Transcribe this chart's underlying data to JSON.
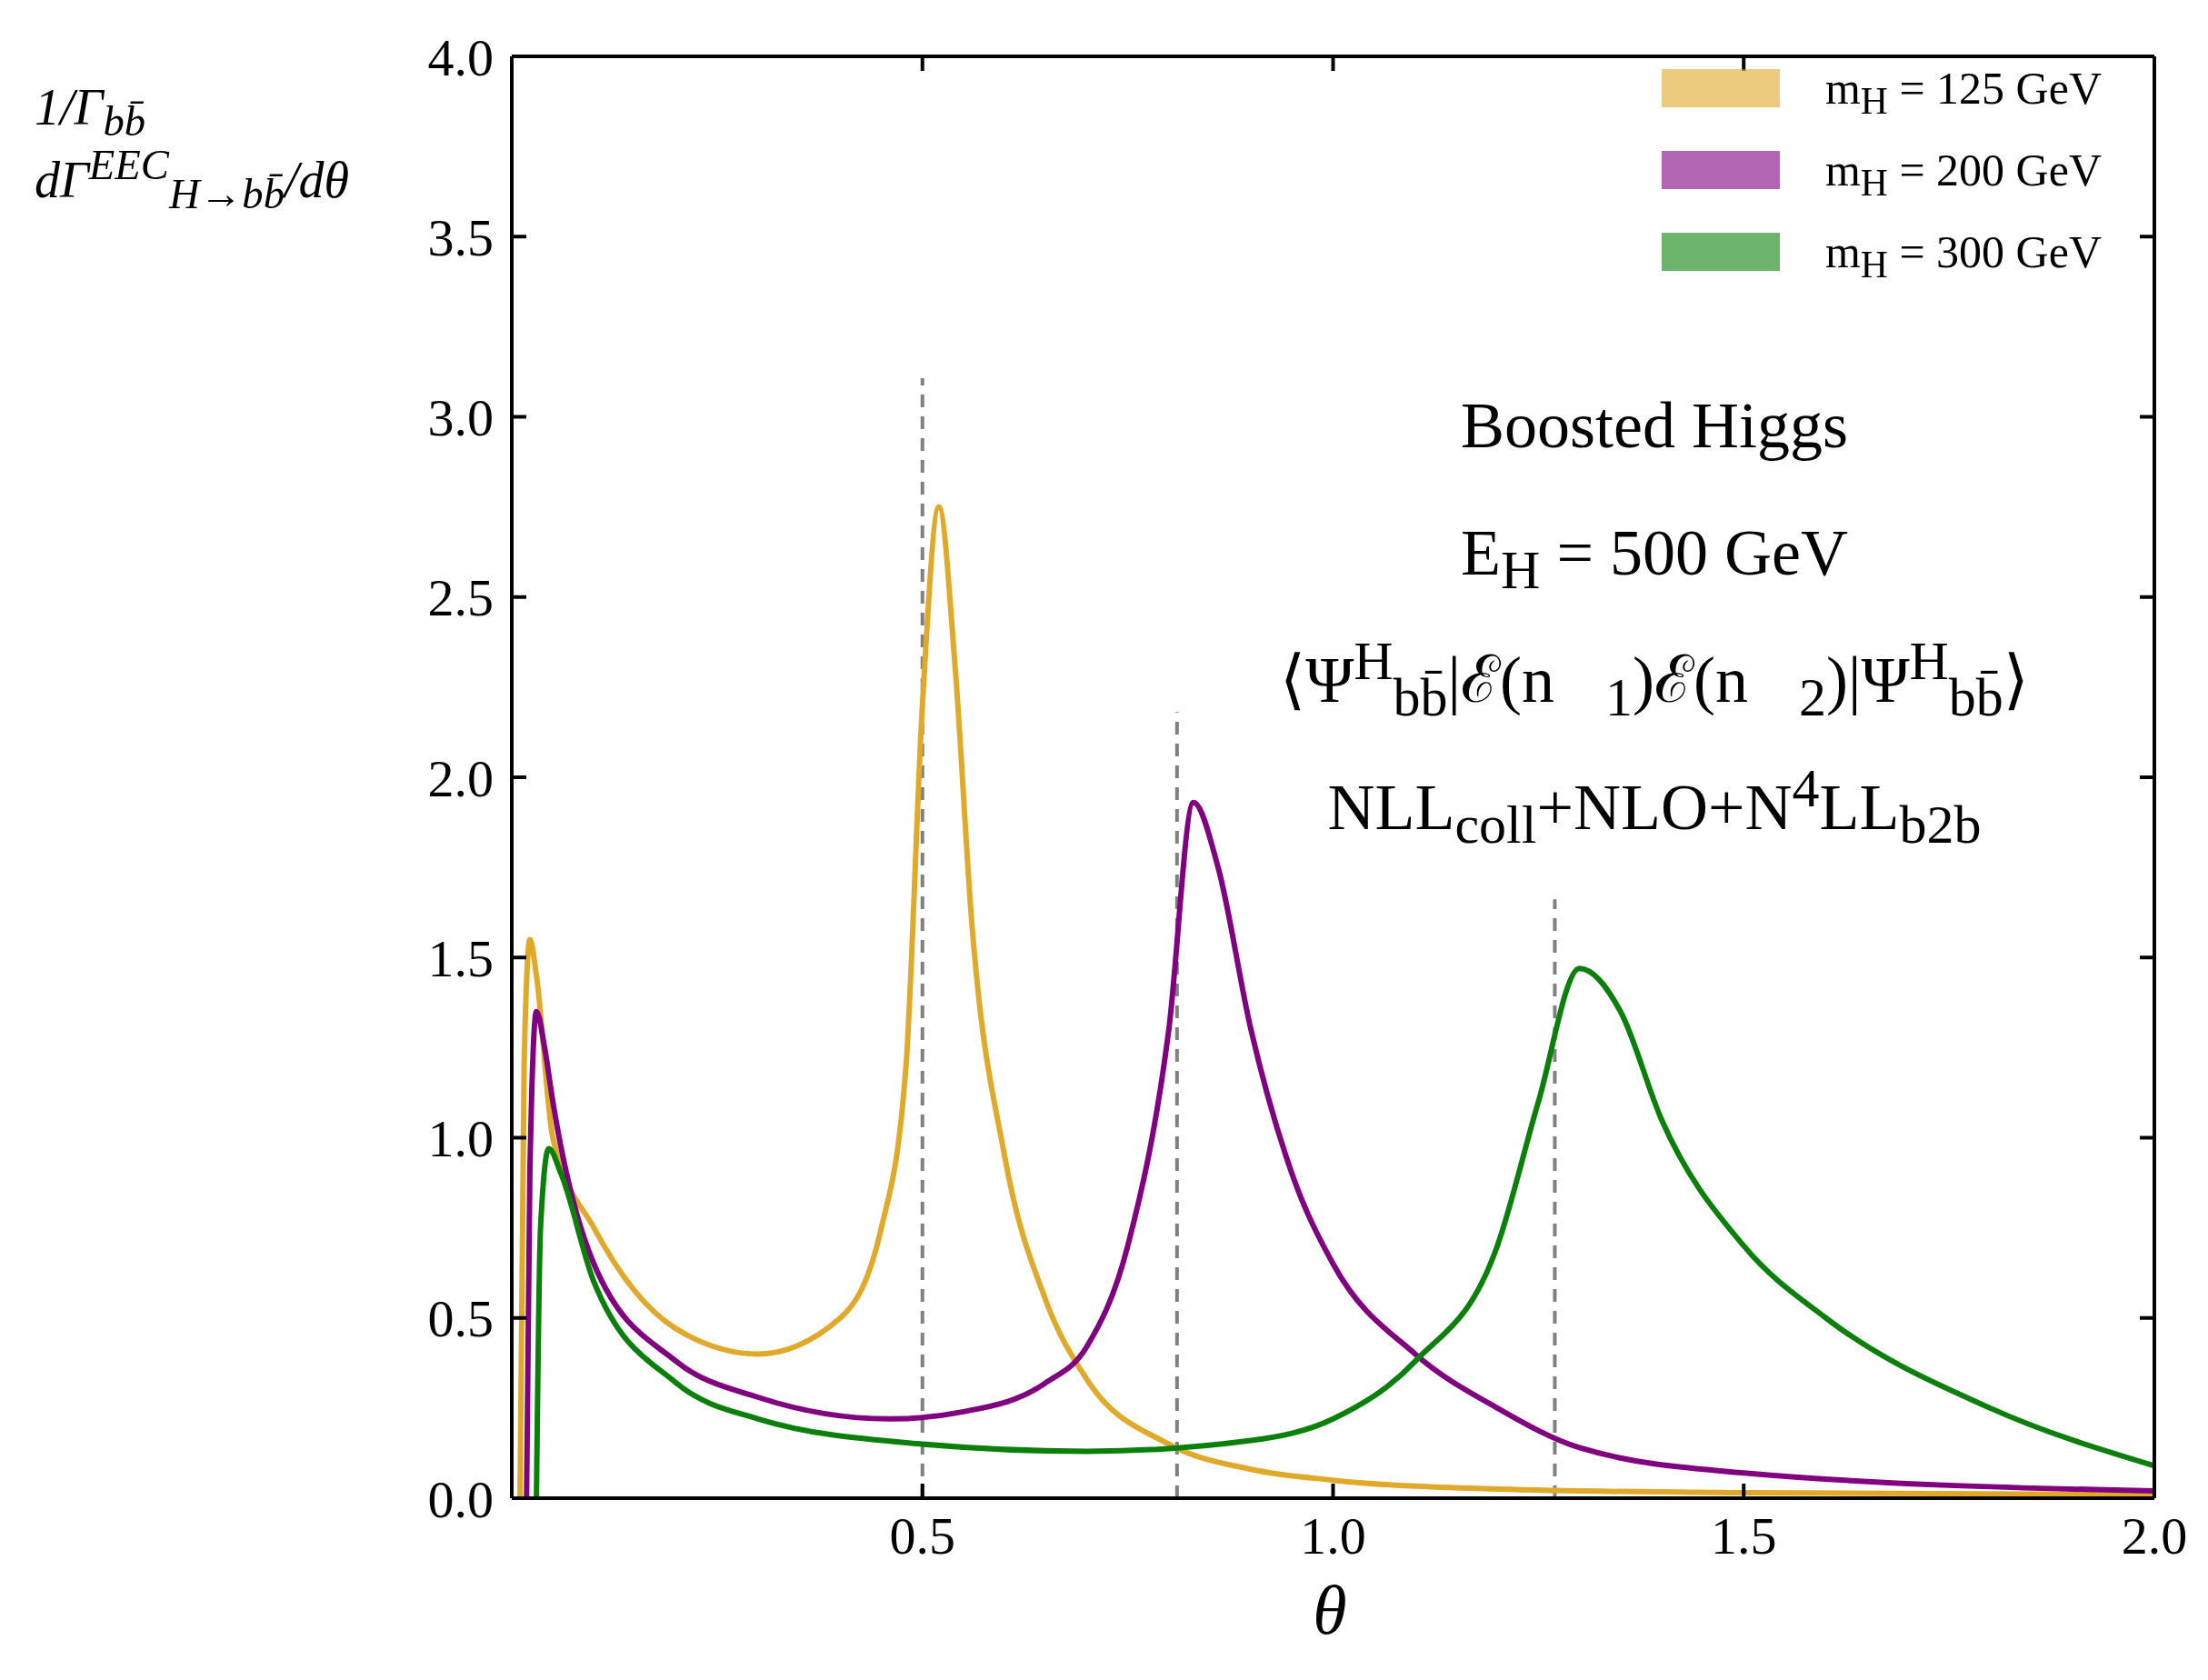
{
  "chart_data": {
    "type": "line",
    "xlabel": "θ",
    "ylabel": "1/Γ$_{bb̄}$ dΓ$^{EEC}$$_{H→bb̄}$/dθ",
    "xlim": [
      0,
      2
    ],
    "xticks": [
      {
        "value": 0.5,
        "label": "0.5"
      },
      {
        "value": 1,
        "label": "1.0"
      },
      {
        "value": 1.5,
        "label": "1.5"
      },
      {
        "value": 2,
        "label": "2.0"
      }
    ],
    "ylim": [
      0,
      4
    ],
    "yticks": [
      {
        "value": 0,
        "label": "0.0"
      },
      {
        "value": 0.5,
        "label": "0.5"
      },
      {
        "value": 1,
        "label": "1.0"
      },
      {
        "value": 1.5,
        "label": "1.5"
      },
      {
        "value": 2,
        "label": "2.0"
      },
      {
        "value": 2.5,
        "label": "2.5"
      },
      {
        "value": 3,
        "label": "3.0"
      },
      {
        "value": 3.5,
        "label": "3.5"
      },
      {
        "value": 4,
        "label": "4.0"
      }
    ],
    "legend": "top right",
    "marker": "none",
    "line_style": "solid",
    "series": [
      {
        "name": "m$_{H}$ = 125 GeV",
        "color": "#e0a92a",
        "x": [
          0.01,
          0.015,
          0.022,
          0.03,
          0.05,
          0.1,
          0.2,
          0.3,
          0.4,
          0.45,
          0.48,
          0.5,
          0.52,
          0.54,
          0.56,
          0.6,
          0.65,
          0.7,
          0.8,
          0.9,
          1.0,
          1.2,
          1.5,
          2.0
        ],
        "values": [
          0,
          1.2,
          1.55,
          1.45,
          1.0,
          0.75,
          0.47,
          0.4,
          0.5,
          0.75,
          1.2,
          2.2,
          2.75,
          2.3,
          1.6,
          0.95,
          0.55,
          0.33,
          0.15,
          0.08,
          0.05,
          0.025,
          0.015,
          0.01
        ]
      },
      {
        "name": "m$_{H}$ = 200 GeV",
        "color": "#800080",
        "x": [
          0.018,
          0.022,
          0.03,
          0.04,
          0.05,
          0.1,
          0.2,
          0.3,
          0.46,
          0.55,
          0.65,
          0.7,
          0.75,
          0.8,
          0.83,
          0.86,
          0.9,
          0.95,
          1.0,
          1.1,
          1.2,
          1.3,
          1.5,
          2.0
        ],
        "values": [
          0,
          0.9,
          1.35,
          1.25,
          1.1,
          0.65,
          0.38,
          0.28,
          0.22,
          0.24,
          0.32,
          0.42,
          0.7,
          1.3,
          1.93,
          1.75,
          1.3,
          0.9,
          0.65,
          0.4,
          0.25,
          0.14,
          0.07,
          0.02
        ]
      },
      {
        "name": "m$_{H}$ = 300 GeV",
        "color": "#0a800a",
        "x": [
          0.03,
          0.035,
          0.045,
          0.06,
          0.1,
          0.2,
          0.3,
          0.5,
          0.7,
          0.9,
          1.0,
          1.1,
          1.2,
          1.25,
          1.3,
          1.35,
          1.4,
          1.5,
          1.6,
          1.8,
          2.0
        ],
        "values": [
          0,
          0.75,
          0.97,
          0.9,
          0.6,
          0.32,
          0.22,
          0.15,
          0.13,
          0.16,
          0.22,
          0.38,
          0.7,
          1.1,
          1.47,
          1.35,
          1.05,
          0.7,
          0.5,
          0.25,
          0.09
        ]
      }
    ],
    "ref_lines": [
      {
        "axis": "x",
        "value": 0.5,
        "color": "#808080",
        "line_style": "dashed"
      },
      {
        "axis": "x",
        "value": 0.81,
        "color": "#808080",
        "line_style": "dashed"
      },
      {
        "axis": "x",
        "value": 1.27,
        "color": "#808080",
        "line_style": "dashed"
      }
    ],
    "annotations": [
      "Boosted Higgs",
      "E$_{H}$ = 500 GeV",
      "⟨Ψ$^{H}$$_{bb̄}$|ℰ(n⃗$_{1}$)ℰ(n⃗$_{2}$)|Ψ$^{H}$$_{bb̄}$⟩",
      "NLL$_{coll}$+NLO+N$^{4}$LL$_{b2b}$"
    ]
  }
}
